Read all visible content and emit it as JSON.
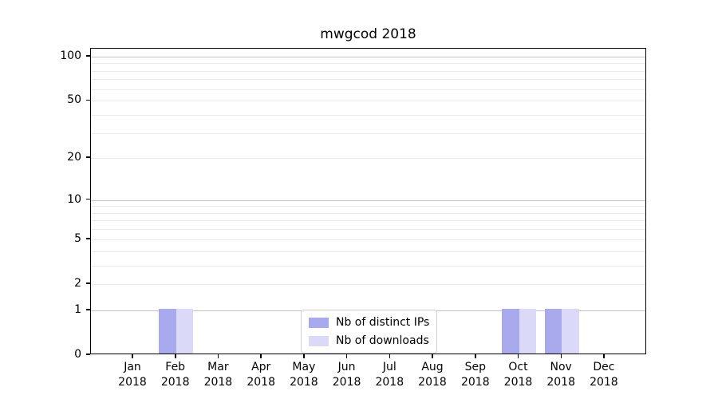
{
  "figure": {
    "title": "mwgcod 2018"
  },
  "legend": {
    "items": [
      {
        "label": "Nb of distinct IPs",
        "color": "#a9a9ee"
      },
      {
        "label": "Nb of downloads",
        "color": "#dadaf8"
      }
    ]
  },
  "colors": {
    "bar_distinct_ips": "#a9a9ee",
    "bar_downloads": "#dadaf8",
    "major_grid": "#c3c3c3",
    "minor_grid": "#ebebeb",
    "axis": "#000000",
    "background": "#ffffff",
    "legend_border": "#d2d2d2"
  },
  "chart_data": {
    "type": "bar",
    "title": "mwgcod 2018",
    "x_categories": [
      "Jan 2018",
      "Feb 2018",
      "Mar 2018",
      "Apr 2018",
      "May 2018",
      "Jun 2018",
      "Jul 2018",
      "Aug 2018",
      "Sep 2018",
      "Oct 2018",
      "Nov 2018",
      "Dec 2018"
    ],
    "series": [
      {
        "name": "Nb of distinct IPs",
        "color": "#a9a9ee",
        "values": [
          0,
          1,
          0,
          0,
          0,
          0,
          0,
          0,
          0,
          1,
          1,
          0
        ]
      },
      {
        "name": "Nb of downloads",
        "color": "#dadaf8",
        "values": [
          0,
          1,
          0,
          0,
          0,
          0,
          0,
          0,
          0,
          1,
          1,
          0
        ]
      }
    ],
    "y_scale": "log1p",
    "ylim": [
      0,
      113
    ],
    "y_ticks": [
      0,
      1,
      2,
      5,
      10,
      20,
      50,
      100
    ],
    "y_major_gridlines": [
      1,
      10,
      100
    ],
    "y_minor_gridlines": [
      2,
      3,
      4,
      5,
      6,
      7,
      8,
      9,
      20,
      30,
      40,
      50,
      60,
      70,
      80,
      90
    ],
    "grid": true,
    "legend_position": "lower center"
  }
}
